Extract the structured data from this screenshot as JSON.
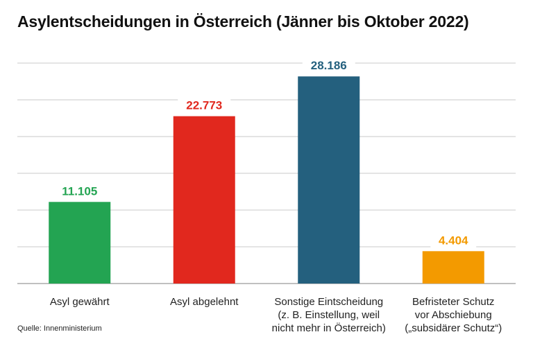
{
  "chart_data": {
    "type": "bar",
    "title": "Asylentscheidungen in Österreich (Jänner bis Oktober 2022)",
    "categories": [
      [
        "Asyl gewährt"
      ],
      [
        "Asyl abgelehnt"
      ],
      [
        "Sonstige Eintscheidung",
        "(z. B. Einstellung, weil",
        "nicht mehr in Österreich)"
      ],
      [
        "Befristeter Schutz",
        "vor Abschiebung",
        "(„subsidärer Schutz“)"
      ]
    ],
    "values": [
      11105,
      22773,
      28186,
      4404
    ],
    "value_labels": [
      "11.105",
      "22.773",
      "28.186",
      "4.404"
    ],
    "colors": [
      "#23a452",
      "#e1281e",
      "#24607e",
      "#f39a00"
    ],
    "ylim": [
      0,
      30000
    ],
    "grid": true,
    "xlabel": "",
    "ylabel": ""
  },
  "source": "Quelle: Innenministerium"
}
